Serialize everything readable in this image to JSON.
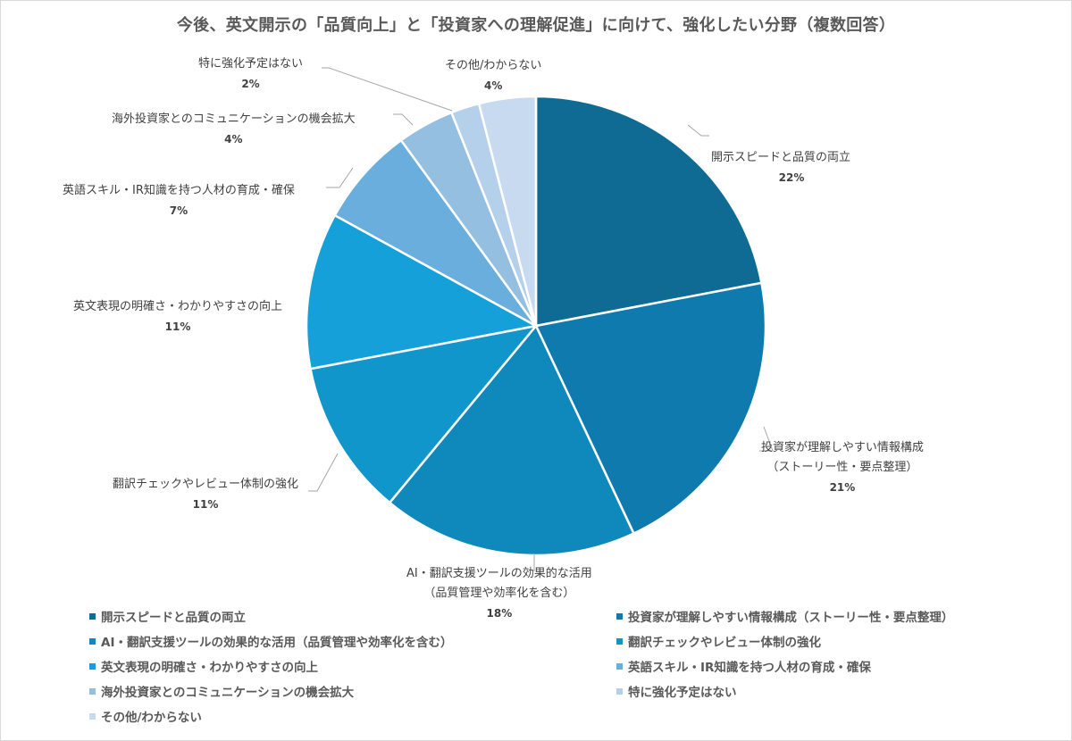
{
  "chart_data": {
    "type": "pie",
    "title": "今後、英文開示の「品質向上」と「投資家への理解促進」に向けて、強化したい分野（複数回答）",
    "start_angle": "12 o'clock, clockwise",
    "slices": [
      {
        "label": "開示スピードと品質の両立",
        "label_lines": [
          "開示スピードと品質の両立"
        ],
        "value": 22,
        "pct_label": "22%",
        "color": "#0f6b93"
      },
      {
        "label": "投資家が理解しやすい情報構成（ストーリー性・要点整理）",
        "label_lines": [
          "投資家が理解しやすい情報構成",
          "（ストーリー性・要点整理）"
        ],
        "value": 21,
        "pct_label": "21%",
        "color": "#0e7aad"
      },
      {
        "label": "AI・翻訳支援ツールの効果的な活用（品質管理や効率化を含む）",
        "label_lines": [
          "AI・翻訳支援ツールの効果的な活用",
          "（品質管理や効率化を含む）"
        ],
        "value": 18,
        "pct_label": "18%",
        "color": "#0f88bb"
      },
      {
        "label": "翻訳チェックやレビュー体制の強化",
        "label_lines": [
          "翻訳チェックやレビュー体制の強化"
        ],
        "value": 11,
        "pct_label": "11%",
        "color": "#1196cc"
      },
      {
        "label": "英文表現の明確さ・わかりやすさの向上",
        "label_lines": [
          "英文表現の明確さ・わかりやすさの向上"
        ],
        "value": 11,
        "pct_label": "11%",
        "color": "#15a0d9"
      },
      {
        "label": "英語スキル・IR知識を持つ人材の育成・確保",
        "label_lines": [
          "英語スキル・IR知識を持つ人材の育成・確保"
        ],
        "value": 7,
        "pct_label": "7%",
        "color": "#6aaedd"
      },
      {
        "label": "海外投資家とのコミュニケーションの機会拡大",
        "label_lines": [
          "海外投資家とのコミュニケーションの機会拡大"
        ],
        "value": 4,
        "pct_label": "4%",
        "color": "#95bfe1"
      },
      {
        "label": "特に強化予定はない",
        "label_lines": [
          "特に強化予定はない"
        ],
        "value": 2,
        "pct_label": "2%",
        "color": "#b5d0eb"
      },
      {
        "label": "その他/わからない",
        "label_lines": [
          "その他/わからない"
        ],
        "value": 4,
        "pct_label": "4%",
        "color": "#c8daf0"
      }
    ],
    "legend": {
      "position": "bottom",
      "columns": 2,
      "entries": [
        "開示スピードと品質の両立",
        "投資家が理解しやすい情報構成（ストーリー性・要点整理）",
        "AI・翻訳支援ツールの効果的な活用（品質管理や効率化を含む）",
        "翻訳チェックやレビュー体制の強化",
        "英文表現の明確さ・わかりやすさの向上",
        "英語スキル・IR知識を持つ人材の育成・確保",
        "海外投資家とのコミュニケーションの機会拡大",
        "特に強化予定はない",
        "その他/わからない"
      ]
    }
  }
}
